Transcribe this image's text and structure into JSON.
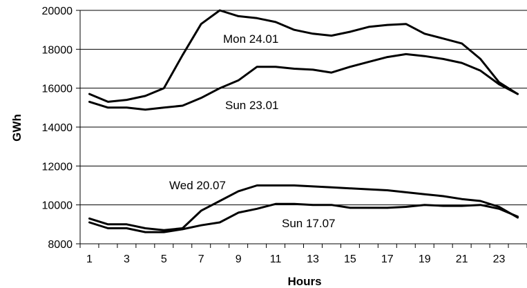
{
  "chart_data": {
    "type": "line",
    "xlabel": "Hours",
    "ylabel": "GWh",
    "xlim": [
      1,
      24
    ],
    "ylim": [
      8000,
      20000
    ],
    "grid": true,
    "x": [
      1,
      2,
      3,
      4,
      5,
      6,
      7,
      8,
      9,
      10,
      11,
      12,
      13,
      14,
      15,
      16,
      17,
      18,
      19,
      20,
      21,
      22,
      23,
      24
    ],
    "xticks": [
      "1",
      "3",
      "5",
      "7",
      "9",
      "11",
      "13",
      "15",
      "17",
      "19",
      "21",
      "23"
    ],
    "yticks": [
      "8000",
      "10000",
      "12000",
      "14000",
      "16000",
      "18000",
      "20000"
    ],
    "series": [
      {
        "name": "Mon 24.01",
        "values": [
          15700,
          15300,
          15400,
          15600,
          16000,
          17700,
          19300,
          20000,
          19700,
          19600,
          19400,
          19000,
          18800,
          18700,
          18900,
          19150,
          19250,
          19300,
          18800,
          18550,
          18300,
          17500,
          16300,
          15700
        ]
      },
      {
        "name": "Sun 23.01",
        "values": [
          15300,
          15000,
          15000,
          14900,
          15000,
          15100,
          15500,
          16000,
          16400,
          17100,
          17100,
          17000,
          16950,
          16800,
          17100,
          17350,
          17600,
          17750,
          17650,
          17500,
          17300,
          16900,
          16200,
          15700
        ]
      },
      {
        "name": "Wed 20.07",
        "values": [
          9300,
          9000,
          9000,
          8800,
          8700,
          8800,
          9700,
          10200,
          10700,
          11000,
          11000,
          11000,
          10950,
          10900,
          10850,
          10800,
          10750,
          10650,
          10550,
          10450,
          10300,
          10200,
          9900,
          9350
        ]
      },
      {
        "name": "Sun 17.07",
        "values": [
          9100,
          8800,
          8800,
          8600,
          8600,
          8750,
          8950,
          9100,
          9600,
          9800,
          10050,
          10050,
          10000,
          10000,
          9850,
          9850,
          9850,
          9900,
          10000,
          9950,
          9950,
          10000,
          9800,
          9400
        ]
      }
    ]
  }
}
